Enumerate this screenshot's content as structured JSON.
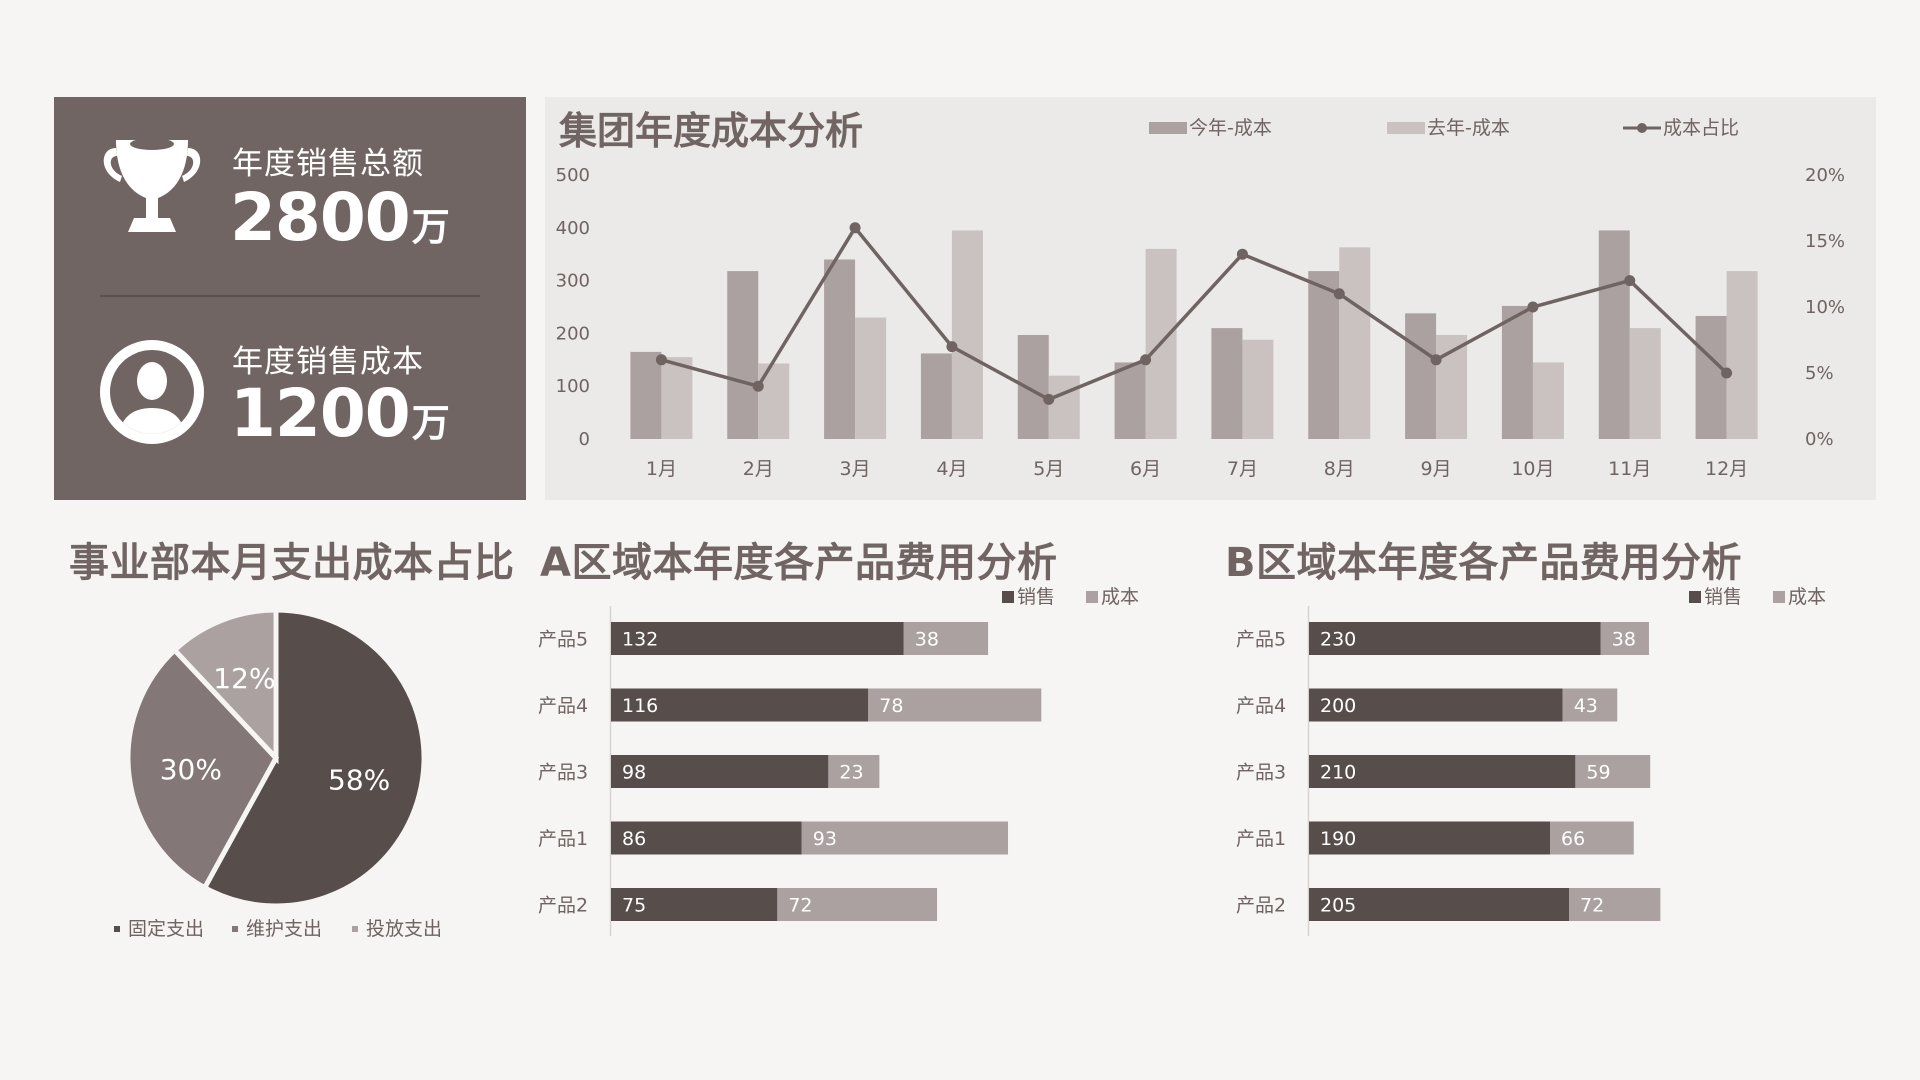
{
  "kpi": {
    "sales_total": {
      "label": "年度销售总额",
      "value": "2800",
      "unit": "万",
      "icon": "trophy-icon"
    },
    "sales_cost": {
      "label": "年度销售成本",
      "value": "1200",
      "unit": "万",
      "icon": "user-avatar-icon"
    }
  },
  "colors": {
    "panel": "#716563",
    "dark": "#574d4b",
    "mid": "#aba1a0",
    "light": "#c9c2c0",
    "line": "#6f6462",
    "pie_dark": "#574d4b",
    "pie_mid": "#837877",
    "pie_light": "#aba1a0"
  },
  "titles": {
    "cost_analysis": "集团年度成本分析",
    "pie": "事业部本月支出成本占比",
    "region_a": "A区域本年度各产品费用分析",
    "region_b": "B区域本年度各产品费用分析"
  },
  "chart_data": [
    {
      "type": "bar",
      "title": "集团年度成本分析",
      "categories": [
        "1月",
        "2月",
        "3月",
        "4月",
        "5月",
        "6月",
        "7月",
        "8月",
        "9月",
        "10月",
        "11月",
        "12月"
      ],
      "series": [
        {
          "name": "今年-成本",
          "type": "bar",
          "values": [
            165,
            318,
            340,
            162,
            197,
            145,
            210,
            318,
            238,
            252,
            395,
            233
          ]
        },
        {
          "name": "去年-成本",
          "type": "bar",
          "values": [
            155,
            143,
            230,
            395,
            120,
            360,
            188,
            363,
            197,
            145,
            210,
            318
          ]
        },
        {
          "name": "成本占比",
          "type": "line",
          "axis": "right",
          "values": [
            6,
            4,
            16,
            7,
            3,
            6,
            14,
            11,
            6,
            10,
            12,
            5
          ]
        }
      ],
      "ylim": [
        0,
        500
      ],
      "yticks": [
        "500",
        "400",
        "300",
        "200",
        "100",
        "0"
      ],
      "y2lim": [
        0,
        20
      ],
      "y2ticks": [
        "20%",
        "15%",
        "10%",
        "5%",
        "0%"
      ],
      "legend": "top",
      "grid": false
    },
    {
      "type": "pie",
      "title": "事业部本月支出成本占比",
      "slices": [
        {
          "name": "固定支出",
          "value": 58,
          "label": "58%"
        },
        {
          "name": "维护支出",
          "value": 30,
          "label": "30%"
        },
        {
          "name": "投放支出",
          "value": 12,
          "label": "12%"
        }
      ],
      "legend": "bottom"
    },
    {
      "type": "bar",
      "orientation": "horizontal",
      "stacked": true,
      "title": "A区域本年度各产品费用分析",
      "categories": [
        "产品5",
        "产品4",
        "产品3",
        "产品1",
        "产品2"
      ],
      "series": [
        {
          "name": "销售",
          "values": [
            132,
            116,
            98,
            86,
            75
          ]
        },
        {
          "name": "成本",
          "values": [
            38,
            78,
            23,
            93,
            72
          ]
        }
      ],
      "legend": "top-right"
    },
    {
      "type": "bar",
      "orientation": "horizontal",
      "stacked": true,
      "title": "B区域本年度各产品费用分析",
      "categories": [
        "产品5",
        "产品4",
        "产品3",
        "产品1",
        "产品2"
      ],
      "series": [
        {
          "name": "销售",
          "values": [
            230,
            200,
            210,
            190,
            205
          ]
        },
        {
          "name": "成本",
          "values": [
            38,
            43,
            59,
            66,
            72
          ]
        }
      ],
      "legend": "top-right"
    }
  ]
}
